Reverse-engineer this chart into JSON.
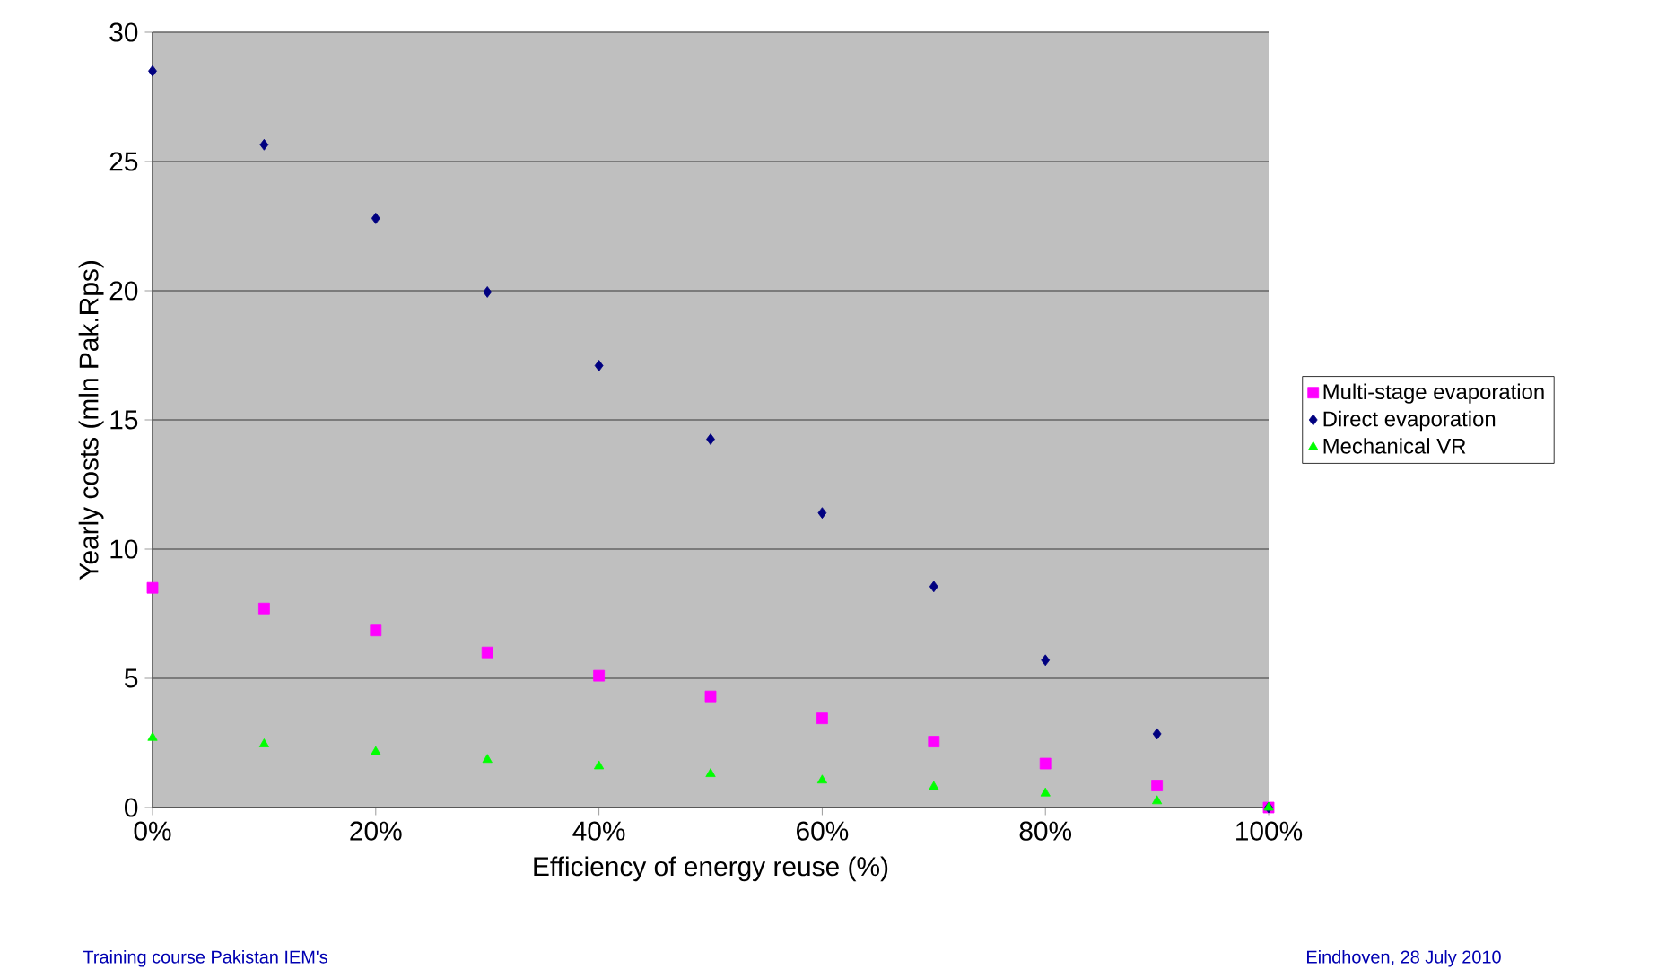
{
  "chart_data": {
    "type": "scatter",
    "xlabel": "Efficiency of energy reuse (%)",
    "ylabel": "Yearly costs (mln Pak.Rps)",
    "x": [
      0,
      10,
      20,
      30,
      40,
      50,
      60,
      70,
      80,
      90,
      100
    ],
    "series": [
      {
        "name": "Multi-stage evaporation",
        "color": "#ff00ff",
        "marker": "square",
        "values": [
          8.5,
          7.7,
          6.85,
          6.0,
          5.1,
          4.3,
          3.45,
          2.55,
          1.7,
          0.85,
          0
        ]
      },
      {
        "name": "Direct evaporation",
        "color": "#000080",
        "marker": "diamond",
        "values": [
          28.5,
          25.65,
          22.8,
          19.95,
          17.1,
          14.25,
          11.4,
          8.55,
          5.7,
          2.85,
          0
        ]
      },
      {
        "name": "Mechanical VR",
        "color": "#00ff00",
        "marker": "triangle",
        "values": [
          2.7,
          2.45,
          2.15,
          1.85,
          1.6,
          1.3,
          1.05,
          0.8,
          0.55,
          0.25,
          0
        ]
      }
    ],
    "xlim": [
      0,
      100
    ],
    "ylim": [
      0,
      30
    ],
    "xticks": [
      {
        "value": 0,
        "label": "0%"
      },
      {
        "value": 20,
        "label": "20%"
      },
      {
        "value": 40,
        "label": "40%"
      },
      {
        "value": 60,
        "label": "60%"
      },
      {
        "value": 80,
        "label": "80%"
      },
      {
        "value": 100,
        "label": "100%"
      }
    ],
    "yticks": [
      0,
      5,
      10,
      15,
      20,
      25,
      30
    ],
    "grid": "y",
    "legend": "right",
    "annotations": [
      "Training course Pakistan IEM's",
      "Eindhoven, 28 July 2010"
    ]
  }
}
